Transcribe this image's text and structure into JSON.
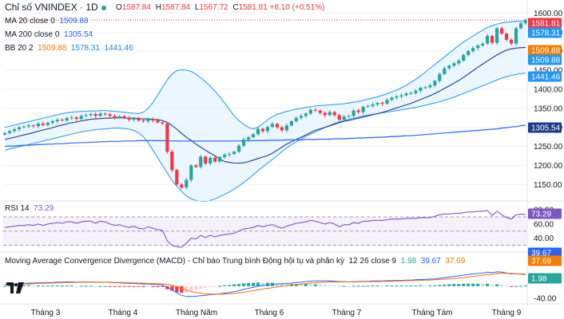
{
  "header": {
    "symbol": "Chỉ số VNINDEX · 1D",
    "ohlc": {
      "o_label": "O",
      "o": "1587.84",
      "h_label": "H",
      "h": "1587.84",
      "l_label": "L",
      "l": "1567.72",
      "c_label": "C",
      "c": "1581.81",
      "change": "+8.10 (+0.51%)"
    }
  },
  "indicators": {
    "ma20": {
      "label": "MA 20 close 0",
      "value": "1509.88"
    },
    "ma200": {
      "label": "MA 200 close 0",
      "value": "1305.54"
    },
    "bb": {
      "label": "BB 20 2",
      "basis": "1509.88",
      "upper": "1578.31",
      "lower": "1441.46"
    },
    "rsi": {
      "label": "RSI 14",
      "value": "73.29"
    },
    "macd": {
      "label": "Moving Average Convergence Divergence (MACD) - Chỉ báo Trung bình Động hội tụ và phân kỳ",
      "params": "12 26 close 9",
      "hist": "1.98",
      "macd": "39.67",
      "signal": "37.69"
    }
  },
  "colors": {
    "up": "#26a69a",
    "down": "#f23645",
    "ma20": "#2962ff",
    "ma200": "#2962ff",
    "bb": "#2196f3",
    "bb_fill": "#e3f2fd",
    "rsi": "#7e57c2",
    "macd": "#2962ff",
    "signal": "#ff6d00"
  },
  "chart_data": {
    "type": "candlestick",
    "x_ticks": [
      "Tháng 3",
      "Tháng 4",
      "Tháng Năm",
      "Tháng 6",
      "Tháng 7",
      "Tháng Tám",
      "Tháng 9"
    ],
    "price_axis": {
      "ticks": [
        1600,
        1550,
        1500,
        1450,
        1400,
        1350,
        1300,
        1250,
        1200,
        1150
      ],
      "ylim": [
        1115,
        1605
      ]
    },
    "price_labels": [
      {
        "value": 1581.81,
        "text": "1581.81",
        "color": "#f23645"
      },
      {
        "value": 1578.31,
        "text": "1578.31",
        "color": "#2196f3"
      },
      {
        "value": 1509.88,
        "text": "1509.88",
        "color": "#f57c00"
      },
      {
        "value": 1509.88,
        "text": "1509.88",
        "color": "#2196f3"
      },
      {
        "value": 1441.46,
        "text": "1441.46",
        "color": "#2196f3"
      },
      {
        "value": 1305.54,
        "text": "1305.54",
        "color": "#2962ff"
      }
    ],
    "closes": [
      1285,
      1290,
      1295,
      1300,
      1302,
      1305,
      1303,
      1310,
      1306,
      1312,
      1316,
      1320,
      1318,
      1324,
      1326,
      1322,
      1330,
      1332,
      1335,
      1330,
      1336,
      1334,
      1330,
      1326,
      1329,
      1325,
      1320,
      1324,
      1318,
      1316,
      1322,
      1318,
      1313,
      1310,
      1236,
      1188,
      1150,
      1142,
      1162,
      1200,
      1196,
      1223,
      1205,
      1220,
      1210,
      1222,
      1228,
      1230,
      1236,
      1252,
      1268,
      1274,
      1282,
      1296,
      1290,
      1301,
      1309,
      1300,
      1292,
      1305,
      1316,
      1325,
      1330,
      1336,
      1346,
      1344,
      1338,
      1332,
      1340,
      1332,
      1320,
      1328,
      1330,
      1344,
      1340,
      1354,
      1356,
      1360,
      1364,
      1362,
      1372,
      1378,
      1381,
      1384,
      1389,
      1390,
      1396,
      1404,
      1405,
      1410,
      1422,
      1440,
      1455,
      1462,
      1468,
      1475,
      1490,
      1500,
      1508,
      1515,
      1520,
      1540,
      1522,
      1560,
      1546,
      1530,
      1520,
      1560,
      1573,
      1582
    ],
    "ma20": [
      1268,
      1271,
      1274,
      1277,
      1280,
      1283,
      1286,
      1290,
      1293,
      1296,
      1299,
      1303,
      1306,
      1309,
      1312,
      1314,
      1317,
      1319,
      1321,
      1322,
      1323,
      1324,
      1324,
      1325,
      1325,
      1325,
      1324,
      1324,
      1323,
      1322,
      1322,
      1321,
      1320,
      1318,
      1313,
      1305,
      1295,
      1284,
      1274,
      1266,
      1256,
      1248,
      1240,
      1232,
      1225,
      1217,
      1210,
      1208,
      1206,
      1206,
      1207,
      1210,
      1214,
      1218,
      1222,
      1226,
      1232,
      1240,
      1248,
      1256,
      1262,
      1268,
      1274,
      1280,
      1286,
      1292,
      1296,
      1300,
      1304,
      1308,
      1312,
      1316,
      1318,
      1321,
      1324,
      1327,
      1330,
      1333,
      1336,
      1339,
      1343,
      1347,
      1351,
      1355,
      1359,
      1363,
      1368,
      1373,
      1378,
      1383,
      1389,
      1395,
      1402,
      1409,
      1416,
      1423,
      1431,
      1440,
      1449,
      1458,
      1466,
      1474,
      1482,
      1490,
      1497,
      1503,
      1506,
      1508,
      1509,
      1510
    ],
    "bb_upper": [
      1300,
      1303,
      1306,
      1309,
      1312,
      1315,
      1318,
      1321,
      1324,
      1327,
      1330,
      1333,
      1336,
      1338,
      1340,
      1341,
      1342,
      1342,
      1343,
      1343,
      1344,
      1344,
      1343,
      1342,
      1341,
      1340,
      1338,
      1337,
      1336,
      1340,
      1350,
      1365,
      1385,
      1405,
      1425,
      1440,
      1449,
      1451,
      1450,
      1447,
      1440,
      1430,
      1420,
      1408,
      1395,
      1380,
      1364,
      1347,
      1330,
      1318,
      1308,
      1300,
      1296,
      1300,
      1310,
      1320,
      1328,
      1334,
      1338,
      1342,
      1345,
      1348,
      1350,
      1352,
      1354,
      1356,
      1357,
      1358,
      1359,
      1360,
      1361,
      1362,
      1364,
      1366,
      1368,
      1371,
      1374,
      1377,
      1380,
      1384,
      1388,
      1393,
      1398,
      1404,
      1410,
      1418,
      1426,
      1435,
      1445,
      1455,
      1465,
      1475,
      1485,
      1495,
      1505,
      1515,
      1524,
      1532,
      1540,
      1548,
      1555,
      1562,
      1567,
      1571,
      1574,
      1576,
      1577,
      1578,
      1578,
      1578
    ],
    "bb_lower": [
      1240,
      1243,
      1246,
      1249,
      1252,
      1255,
      1258,
      1261,
      1264,
      1267,
      1270,
      1273,
      1276,
      1279,
      1282,
      1285,
      1288,
      1290,
      1292,
      1294,
      1295,
      1296,
      1297,
      1298,
      1298,
      1297,
      1295,
      1292,
      1285,
      1275,
      1260,
      1240,
      1220,
      1200,
      1180,
      1160,
      1145,
      1132,
      1120,
      1112,
      1108,
      1106,
      1105,
      1108,
      1112,
      1118,
      1124,
      1130,
      1138,
      1146,
      1155,
      1165,
      1175,
      1186,
      1196,
      1206,
      1216,
      1226,
      1236,
      1246,
      1254,
      1262,
      1269,
      1276,
      1282,
      1288,
      1294,
      1300,
      1305,
      1310,
      1314,
      1318,
      1321,
      1324,
      1327,
      1330,
      1332,
      1334,
      1336,
      1338,
      1340,
      1342,
      1344,
      1346,
      1348,
      1350,
      1352,
      1355,
      1358,
      1361,
      1364,
      1367,
      1371,
      1375,
      1379,
      1384,
      1389,
      1394,
      1399,
      1404,
      1409,
      1414,
      1419,
      1424,
      1429,
      1433,
      1436,
      1439,
      1441,
      1442
    ],
    "ma200": [
      1250,
      1251,
      1251,
      1252,
      1253,
      1253,
      1254,
      1255,
      1255,
      1256,
      1256,
      1257,
      1257,
      1258,
      1259,
      1259,
      1260,
      1260,
      1261,
      1261,
      1262,
      1262,
      1263,
      1263,
      1263,
      1264,
      1264,
      1264,
      1265,
      1265,
      1265,
      1265,
      1265,
      1265,
      1265,
      1264,
      1264,
      1264,
      1264,
      1264,
      1264,
      1264,
      1264,
      1264,
      1264,
      1264,
      1264,
      1264,
      1264,
      1264,
      1265,
      1265,
      1265,
      1265,
      1265,
      1266,
      1266,
      1266,
      1266,
      1267,
      1267,
      1267,
      1267,
      1268,
      1268,
      1268,
      1269,
      1269,
      1269,
      1270,
      1270,
      1270,
      1271,
      1271,
      1272,
      1272,
      1273,
      1273,
      1274,
      1274,
      1275,
      1276,
      1276,
      1277,
      1278,
      1278,
      1279,
      1280,
      1281,
      1282,
      1283,
      1284,
      1285,
      1286,
      1287,
      1288,
      1289,
      1290,
      1291,
      1292,
      1293,
      1294,
      1295,
      1296,
      1298,
      1299,
      1301,
      1302,
      1304,
      1305.54
    ],
    "rsi": {
      "ticks": [
        80,
        60,
        40
      ],
      "ylim": [
        25,
        88
      ],
      "overbought": 70,
      "oversold": 30,
      "values": [
        55,
        56,
        57,
        58,
        58,
        59,
        58,
        60,
        58,
        60,
        61,
        62,
        61,
        63,
        63,
        61,
        63,
        64,
        64,
        61,
        64,
        63,
        60,
        58,
        59,
        57,
        55,
        57,
        54,
        53,
        56,
        54,
        52,
        51,
        36,
        30,
        28,
        27,
        33,
        40,
        39,
        44,
        41,
        44,
        42,
        44,
        45,
        46,
        47,
        50,
        53,
        54,
        55,
        58,
        56,
        58,
        59,
        56,
        54,
        57,
        59,
        61,
        62,
        63,
        65,
        64,
        62,
        60,
        62,
        60,
        56,
        59,
        59,
        62,
        61,
        64,
        64,
        65,
        65,
        65,
        66,
        67,
        67,
        67,
        68,
        68,
        68,
        69,
        69,
        69,
        71,
        73,
        74,
        74,
        75,
        75,
        76,
        77,
        77,
        78,
        78,
        79,
        72,
        78,
        73,
        69,
        67,
        73,
        74,
        73.29
      ]
    },
    "macd": {
      "ticks": [
        -40
      ],
      "ylim": [
        -45,
        65
      ],
      "macd": [
        5,
        6,
        7,
        8,
        9,
        10,
        10,
        11,
        11,
        12,
        12,
        13,
        13,
        14,
        14,
        13,
        14,
        14,
        14,
        13,
        13,
        13,
        12,
        11,
        11,
        10,
        9,
        9,
        8,
        7,
        7,
        6,
        5,
        4,
        -4,
        -12,
        -22,
        -30,
        -34,
        -34,
        -33,
        -31,
        -30,
        -28,
        -27,
        -25,
        -23,
        -21,
        -18,
        -15,
        -11,
        -7,
        -4,
        0,
        2,
        4,
        6,
        7,
        8,
        9,
        10,
        12,
        13,
        15,
        16,
        17,
        17,
        17,
        17,
        16,
        15,
        15,
        14,
        15,
        15,
        16,
        16,
        17,
        17,
        17,
        18,
        18,
        19,
        19,
        20,
        20,
        21,
        22,
        22,
        23,
        24,
        26,
        28,
        30,
        32,
        34,
        36,
        38,
        40,
        42,
        43,
        46,
        44,
        47,
        46,
        43,
        40,
        41,
        40,
        39.67
      ],
      "signal": [
        4,
        5,
        5,
        6,
        7,
        7,
        8,
        9,
        9,
        10,
        10,
        11,
        11,
        12,
        12,
        12,
        13,
        13,
        13,
        13,
        13,
        13,
        13,
        12,
        12,
        12,
        11,
        11,
        10,
        10,
        9,
        9,
        8,
        7,
        6,
        3,
        -2,
        -8,
        -13,
        -18,
        -21,
        -23,
        -25,
        -26,
        -26,
        -26,
        -26,
        -25,
        -24,
        -22,
        -20,
        -17,
        -15,
        -12,
        -9,
        -7,
        -5,
        -2,
        0,
        2,
        3,
        5,
        7,
        8,
        10,
        11,
        12,
        13,
        14,
        14,
        14,
        14,
        14,
        14,
        14,
        15,
        15,
        15,
        15,
        16,
        16,
        16,
        17,
        17,
        18,
        18,
        19,
        19,
        20,
        20,
        21,
        22,
        23,
        24,
        25,
        27,
        28,
        30,
        32,
        34,
        36,
        38,
        39,
        41,
        42,
        42,
        42,
        41,
        39,
        37.69
      ],
      "hist_last": 1.98
    }
  }
}
